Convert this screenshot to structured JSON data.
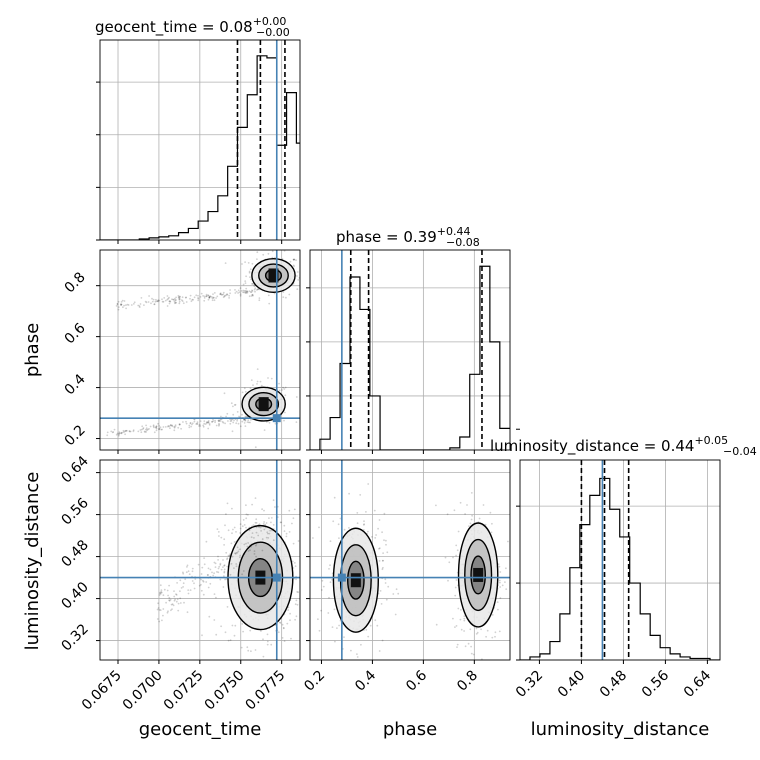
{
  "chart_data": {
    "type": "corner",
    "parameters": [
      "geocent_time",
      "phase",
      "luminosity_distance"
    ],
    "truths": {
      "geocent_time": 0.0772,
      "phase": 0.28,
      "luminosity_distance": 0.44
    },
    "colors": {
      "truth": "#4682b4",
      "hist": "#000000",
      "grid": "#b0b0b0",
      "quantile": "#000000"
    },
    "titles": [
      {
        "param": "geocent_time",
        "text": "geocent_time = 0.08",
        "plus": "+0.00",
        "minus": "−0.00"
      },
      {
        "param": "phase",
        "text": "phase = 0.39",
        "plus": "+0.44",
        "minus": "−0.08"
      },
      {
        "param": "luminosity_distance",
        "text": "luminosity_distance = 0.44",
        "plus": "+0.05",
        "minus": "−0.04"
      }
    ],
    "axes": {
      "geocent_time": {
        "range": [
          0.0664,
          0.07862
        ],
        "ticks": [
          0.0675,
          0.07,
          0.0725,
          0.075,
          0.0775
        ],
        "tick_labels": [
          "0.0675",
          "0.0700",
          "0.0725",
          "0.0750",
          "0.0775"
        ],
        "label": "geocent_time"
      },
      "phase": {
        "range": [
          0.155,
          0.94
        ],
        "ticks": [
          0.2,
          0.4,
          0.6,
          0.8
        ],
        "tick_labels": [
          "0.2",
          "0.4",
          "0.6",
          "0.8"
        ],
        "label": "phase"
      },
      "luminosity_distance": {
        "range": [
          0.283,
          0.664
        ],
        "ticks": [
          0.32,
          0.4,
          0.48,
          0.56,
          0.64
        ],
        "tick_labels": [
          "0.32",
          "0.40",
          "0.48",
          "0.56",
          "0.64"
        ],
        "label": "luminosity_distance"
      }
    },
    "histograms": {
      "geocent_time": {
        "edges": [
          0.0664,
          0.067,
          0.0676,
          0.0682,
          0.0688,
          0.0694,
          0.07,
          0.0706,
          0.0712,
          0.0718,
          0.0724,
          0.073,
          0.0736,
          0.0742,
          0.0748,
          0.0754,
          0.076,
          0.0766,
          0.0772,
          0.0778,
          0.0784,
          0.07862
        ],
        "counts": [
          0,
          0,
          0,
          0,
          1,
          2,
          3,
          4,
          7,
          11,
          18,
          27,
          42,
          70,
          107,
          138,
          175,
          173,
          90,
          140,
          92
        ],
        "ymax": 190,
        "quantiles": [
          0.0748,
          0.0762,
          0.0777
        ]
      },
      "phase": {
        "edges": [
          0.155,
          0.194,
          0.234,
          0.273,
          0.312,
          0.351,
          0.39,
          0.43,
          0.469,
          0.508,
          0.547,
          0.586,
          0.626,
          0.665,
          0.704,
          0.743,
          0.782,
          0.822,
          0.861,
          0.9,
          0.94
        ],
        "counts": [
          0,
          10,
          30,
          80,
          160,
          130,
          50,
          0,
          0,
          0,
          0,
          0,
          0,
          0,
          2,
          12,
          70,
          170,
          100,
          20
        ],
        "ymax": 185,
        "quantiles": [
          0.315,
          0.385,
          0.83
        ]
      },
      "luminosity_distance": {
        "edges": [
          0.283,
          0.302,
          0.321,
          0.34,
          0.359,
          0.378,
          0.397,
          0.416,
          0.435,
          0.454,
          0.473,
          0.492,
          0.512,
          0.531,
          0.55,
          0.569,
          0.588,
          0.607,
          0.626,
          0.645,
          0.664
        ],
        "counts": [
          0,
          2,
          4,
          12,
          30,
          60,
          88,
          107,
          118,
          98,
          80,
          50,
          30,
          16,
          8,
          4,
          2,
          1,
          1,
          0
        ],
        "ymax": 130,
        "quantiles": [
          0.4,
          0.444,
          0.49
        ]
      }
    },
    "joint": {
      "geocent_time__phase": [
        {
          "cx": 0.077,
          "cy": 0.84,
          "sx": 0.0006,
          "sy": 0.03,
          "n": 220,
          "contours": 3
        },
        {
          "cx": 0.0718,
          "cy": 0.75,
          "sx": 0.0022,
          "sy": 0.02,
          "n": 180,
          "contours": 0
        },
        {
          "cx": 0.0764,
          "cy": 0.335,
          "sx": 0.0006,
          "sy": 0.03,
          "n": 200,
          "contours": 3
        },
        {
          "cx": 0.0712,
          "cy": 0.25,
          "sx": 0.0022,
          "sy": 0.02,
          "n": 180,
          "contours": 0
        }
      ],
      "geocent_time__luminosity_distance": [
        {
          "cx": 0.0762,
          "cy": 0.44,
          "sx": 0.0009,
          "sy": 0.045,
          "n": 450,
          "contours": 3
        },
        {
          "cx": 0.0735,
          "cy": 0.46,
          "sx": 0.0018,
          "sy": 0.05,
          "n": 200,
          "contours": 0
        }
      ],
      "phase__luminosity_distance": [
        {
          "cx": 0.335,
          "cy": 0.435,
          "sx": 0.04,
          "sy": 0.045,
          "n": 320,
          "contours": 3
        },
        {
          "cx": 0.815,
          "cy": 0.445,
          "sx": 0.035,
          "sy": 0.045,
          "n": 320,
          "contours": 3
        }
      ]
    }
  }
}
